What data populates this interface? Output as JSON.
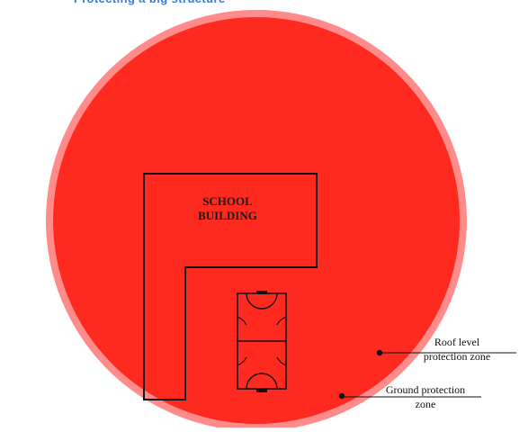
{
  "title": "Protecting a big structure",
  "building_label_line1": "SCHOOL",
  "building_label_line2": "BUILDING",
  "roof_zone_label_line1": "Roof level",
  "roof_zone_label_line2": "protection zone",
  "ground_zone_label_line1": "Ground protection",
  "ground_zone_label_line2": "zone",
  "colors": {
    "roof_zone": "#ff2a1f",
    "ground_zone": "#ff8b8b",
    "outline": "#111111",
    "title": "#3a7bd5"
  }
}
